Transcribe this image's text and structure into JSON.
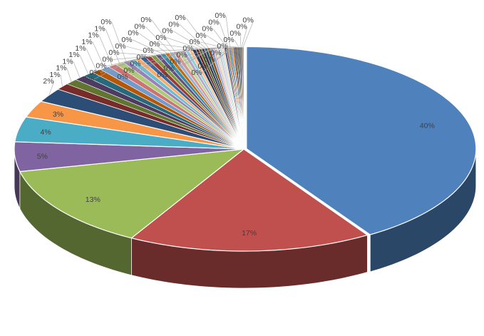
{
  "chart_data": {
    "type": "pie",
    "style": "3d-exploded",
    "data_labels": [
      "40%",
      "17%",
      "13%",
      "5%",
      "4%",
      "3%",
      "2%",
      "1%",
      "1%",
      "1%",
      "1%",
      "1%",
      "1%",
      "1%",
      "1%",
      "0%",
      "0%",
      "0%",
      "0%",
      "0%",
      "0%",
      "0%",
      "0%",
      "0%",
      "0%",
      "0%",
      "0%",
      "0%",
      "0%",
      "0%",
      "0%",
      "0%",
      "0%",
      "0%",
      "0%",
      "0%",
      "0%",
      "0%",
      "0%",
      "0%",
      "0%",
      "0%",
      "0%",
      "0%",
      "0%",
      "0%",
      "0%",
      "0%",
      "0%",
      "0%",
      "0%",
      "0%",
      "0%",
      "0%",
      "0%"
    ],
    "values": [
      40.25,
      16.9,
      13.1,
      4.6,
      3.9,
      2.6,
      2.2,
      1.0,
      0.9,
      0.8,
      0.8,
      0.7,
      0.7,
      0.6,
      0.6,
      0.45,
      0.45,
      0.4,
      0.4,
      0.4,
      0.35,
      0.35,
      0.35,
      0.3,
      0.3,
      0.3,
      0.3,
      0.25,
      0.25,
      0.25,
      0.25,
      0.2,
      0.2,
      0.2,
      0.2,
      0.2,
      0.2,
      0.15,
      0.15,
      0.15,
      0.15,
      0.15,
      0.15,
      0.1,
      0.1,
      0.1,
      0.1,
      0.1,
      0.1,
      0.1,
      0.1,
      0.1,
      0.1,
      0.1,
      0.1
    ],
    "colors": [
      "#4f81bd",
      "#c0504d",
      "#9bbb59",
      "#8064a2",
      "#4bacc6",
      "#f79646",
      "#2c4d75",
      "#772c2a",
      "#5f7530",
      "#4d3b62",
      "#276a7c",
      "#b65708",
      "#729aca",
      "#cd7371",
      "#afc97a",
      "#9983b5",
      "#6fbdd1",
      "#f9ab6b",
      "#3a679c",
      "#9c3a38",
      "#7f9a41",
      "#664f83",
      "#358ea6",
      "#c76b0a",
      "#95b3d7",
      "#d99694",
      "#c3d69b",
      "#b2a2c7",
      "#93cddd",
      "#fac090",
      "#1f3a5c",
      "#632523",
      "#4f6228",
      "#3f3151",
      "#215968",
      "#974806",
      "#8ea9db",
      "#e6b9b8",
      "#d7e4bd",
      "#ccc1da",
      "#b7dee8",
      "#fcd5b4",
      "#366092",
      "#953735",
      "#76923c",
      "#5f497a",
      "#31859c",
      "#e46c0a",
      "#17375e",
      "#4a1c1b",
      "#3b4a1e",
      "#2f253d",
      "#1a4350",
      "#733604",
      "#7f7f7f"
    ]
  }
}
